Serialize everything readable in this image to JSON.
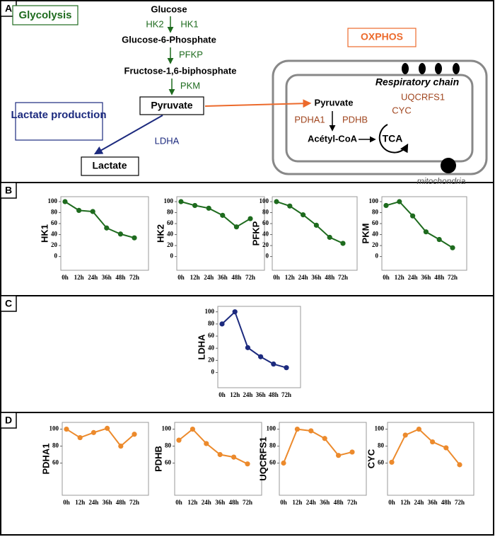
{
  "panels": [
    "A",
    "B",
    "C",
    "D"
  ],
  "diagram": {
    "glycolysis": "Glycolysis",
    "glucose": "Glucose",
    "hk2": "HK2",
    "hk1": "HK1",
    "g6p": "Glucose-6-Phosphate",
    "pfkp": "PFKP",
    "f16bp": "Fructose-1,6-biphosphate",
    "pkm": "PKM",
    "pyruvate": "Pyruvate",
    "lactate_production": "Lactate production",
    "ldha": "LDHA",
    "lactate": "Lactate",
    "oxphos": "OXPHOS",
    "respiratory_chain": "Respiratory chain",
    "uqcrfs1": "UQCRFS1",
    "cyc": "CYC",
    "mito_pyruvate": "Pyruvate",
    "pdha1": "PDHA1",
    "pdhb": "PDHB",
    "acetyl_coa": "Acétyl-CoA",
    "tca": "TCA",
    "mitochondria": "mitochondria"
  },
  "chart_data": [
    {
      "type": "line",
      "ylabel": "HK1",
      "categories": [
        "0h",
        "12h",
        "24h",
        "36h",
        "48h",
        "72h"
      ],
      "values": [
        100,
        84,
        82,
        52,
        41,
        34
      ],
      "color": "#1e6b1e",
      "ylim": [
        -25,
        109
      ],
      "yticks": [
        0,
        20,
        40,
        60,
        80,
        100
      ]
    },
    {
      "type": "line",
      "ylabel": "HK2",
      "categories": [
        "0h",
        "12h",
        "24h",
        "36h",
        "48h",
        "72h"
      ],
      "values": [
        100,
        93,
        88,
        75,
        54,
        69
      ],
      "color": "#1e6b1e",
      "ylim": [
        -25,
        109
      ],
      "yticks": [
        0,
        20,
        40,
        60,
        80,
        100
      ]
    },
    {
      "type": "line",
      "ylabel": "PFKP",
      "categories": [
        "0h",
        "12h",
        "24h",
        "36h",
        "48h",
        "72h"
      ],
      "values": [
        100,
        92,
        76,
        57,
        35,
        24
      ],
      "color": "#1e6b1e",
      "ylim": [
        -25,
        109
      ],
      "yticks": [
        0,
        20,
        40,
        60,
        80,
        100
      ]
    },
    {
      "type": "line",
      "ylabel": "PKM",
      "categories": [
        "0h",
        "12h",
        "24h",
        "36h",
        "48h",
        "72h"
      ],
      "values": [
        93,
        100,
        74,
        45,
        31,
        16
      ],
      "color": "#1e6b1e",
      "ylim": [
        -25,
        109
      ],
      "yticks": [
        0,
        20,
        40,
        60,
        80,
        100
      ]
    },
    {
      "type": "line",
      "ylabel": "LDHA",
      "categories": [
        "0h",
        "12h",
        "24h",
        "36h",
        "48h",
        "72h"
      ],
      "values": [
        80,
        100,
        41,
        26,
        14,
        8
      ],
      "color": "#1c2a7e",
      "ylim": [
        -25,
        109
      ],
      "yticks": [
        0,
        20,
        40,
        60,
        80,
        100
      ]
    },
    {
      "type": "line",
      "ylabel": "PDHA1",
      "categories": [
        "0h",
        "12h",
        "24h",
        "36h",
        "48h",
        "72h"
      ],
      "values": [
        100,
        90,
        96,
        101,
        80,
        94
      ],
      "color": "#ec8a2c",
      "ylim": [
        22,
        108
      ],
      "yticks": [
        60,
        80,
        100
      ]
    },
    {
      "type": "line",
      "ylabel": "PDHB",
      "categories": [
        "0h",
        "12h",
        "24h",
        "36h",
        "48h",
        "72h"
      ],
      "values": [
        87,
        100,
        83,
        70,
        67,
        59
      ],
      "color": "#ec8a2c",
      "ylim": [
        22,
        108
      ],
      "yticks": [
        60,
        80,
        100
      ]
    },
    {
      "type": "line",
      "ylabel": "UQCRFS1",
      "categories": [
        "0h",
        "12h",
        "24h",
        "36h",
        "48h",
        "72h"
      ],
      "values": [
        60,
        100,
        98,
        89,
        69,
        73
      ],
      "color": "#ec8a2c",
      "ylim": [
        22,
        108
      ],
      "yticks": [
        60,
        80,
        100
      ]
    },
    {
      "type": "line",
      "ylabel": "CYC",
      "categories": [
        "0h",
        "12h",
        "24h",
        "36h",
        "48h",
        "72h"
      ],
      "values": [
        61,
        93,
        100,
        85,
        78,
        58
      ],
      "color": "#ec8a2c",
      "ylim": [
        22,
        108
      ],
      "yticks": [
        60,
        80,
        100
      ]
    }
  ]
}
